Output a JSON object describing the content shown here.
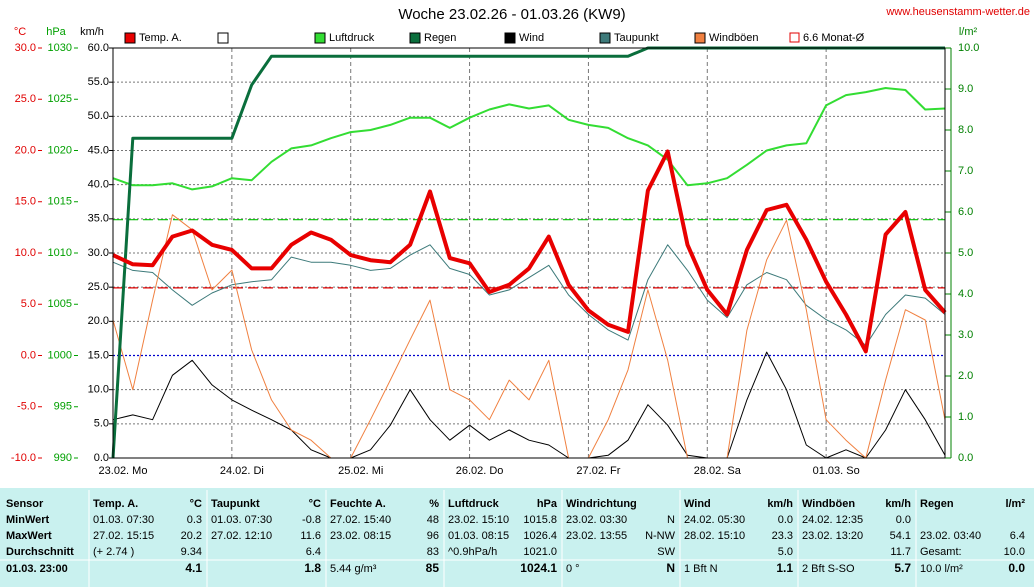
{
  "chart_data": {
    "type": "line",
    "title": "Woche 23.02.26 - 01.03.26 (KW9)",
    "source": "www.heusenstamm-wetter.de",
    "x": [
      0,
      4,
      8,
      12,
      16,
      20,
      24,
      28,
      32,
      36,
      40,
      44,
      48,
      52,
      56,
      60,
      64,
      68,
      72,
      76,
      80,
      84,
      88,
      92,
      96,
      100,
      104,
      108,
      112,
      116,
      120,
      124,
      128,
      132,
      136,
      140,
      144,
      148,
      152,
      156,
      160,
      164,
      168
    ],
    "xlim": [
      0,
      168
    ],
    "xticks": [
      {
        "value": 0,
        "label": "23.02. Mo"
      },
      {
        "value": 24,
        "label": "24.02. Di"
      },
      {
        "value": 48,
        "label": "25.02. Mi"
      },
      {
        "value": 72,
        "label": "26.02. Do"
      },
      {
        "value": 96,
        "label": "27.02. Fr"
      },
      {
        "value": 120,
        "label": "28.02. Sa"
      },
      {
        "value": 144,
        "label": "01.03. So"
      }
    ],
    "axes": {
      "temp": {
        "label": "°C",
        "color": "#e00000",
        "lim": [
          -10,
          30
        ],
        "ticks": [
          {
            "value": -10,
            "label": "-10.0"
          },
          {
            "value": -5,
            "label": "-5.0"
          },
          {
            "value": 0,
            "label": "0.0"
          },
          {
            "value": 5,
            "label": "5.0"
          },
          {
            "value": 10,
            "label": "10.0"
          },
          {
            "value": 15,
            "label": "15.0"
          },
          {
            "value": 20,
            "label": "20.0"
          },
          {
            "value": 25,
            "label": "25.0"
          },
          {
            "value": 30,
            "label": "30.0"
          }
        ]
      },
      "hpa": {
        "label": "hPa",
        "color": "#00a000",
        "lim": [
          990,
          1030
        ],
        "ticks": [
          990,
          995,
          1000,
          1005,
          1010,
          1015,
          1020,
          1025,
          1030
        ]
      },
      "kmh": {
        "label": "km/h",
        "color": "#000000",
        "lim": [
          0,
          60
        ],
        "grid": true,
        "ticks": [
          {
            "value": 0,
            "label": "0.0"
          },
          {
            "value": 5,
            "label": "5.0"
          },
          {
            "value": 10,
            "label": "10.0"
          },
          {
            "value": 15,
            "label": "15.0"
          },
          {
            "value": 20,
            "label": "20.0"
          },
          {
            "value": 25,
            "label": "25.0"
          },
          {
            "value": 30,
            "label": "30.0"
          },
          {
            "value": 35,
            "label": "35.0"
          },
          {
            "value": 40,
            "label": "40.0"
          },
          {
            "value": 45,
            "label": "45.0"
          },
          {
            "value": 50,
            "label": "50.0"
          },
          {
            "value": 55,
            "label": "55.0"
          },
          {
            "value": 60,
            "label": "60.0"
          }
        ]
      },
      "rain": {
        "label": "l/m²",
        "color": "#008000",
        "lim": [
          0,
          10
        ],
        "ticks": [
          {
            "value": 0,
            "label": "0.0"
          },
          {
            "value": 1,
            "label": "1.0"
          },
          {
            "value": 2,
            "label": "2.0"
          },
          {
            "value": 3,
            "label": "3.0"
          },
          {
            "value": 4,
            "label": "4.0"
          },
          {
            "value": 5,
            "label": "5.0"
          },
          {
            "value": 6,
            "label": "6.0"
          },
          {
            "value": 7,
            "label": "7.0"
          },
          {
            "value": 8,
            "label": "8.0"
          },
          {
            "value": 9,
            "label": "9.0"
          },
          {
            "value": 10,
            "label": "10.0"
          }
        ]
      }
    },
    "series": [
      {
        "name": "Temp. A.",
        "axis": "temp",
        "color": "#e80000",
        "width": 4,
        "values": [
          9.8,
          8.9,
          8.8,
          11.6,
          12.2,
          10.8,
          10.3,
          8.5,
          8.5,
          10.8,
          12.0,
          11.3,
          9.8,
          9.3,
          9.1,
          10.8,
          16.0,
          9.5,
          9.0,
          6.2,
          6.9,
          8.5,
          11.6,
          6.9,
          4.4,
          3.0,
          2.3,
          16.1,
          19.9,
          10.8,
          6.4,
          4.0,
          10.3,
          14.2,
          14.7,
          11.3,
          7.2,
          4.0,
          0.4,
          11.8,
          14.0,
          6.4,
          4.2
        ]
      },
      {
        "name": "Luftdruck",
        "axis": "hpa",
        "color": "#33dd33",
        "width": 2,
        "values": [
          1017.3,
          1016.6,
          1016.6,
          1016.8,
          1016.2,
          1016.5,
          1017.3,
          1017.1,
          1018.9,
          1020.2,
          1020.5,
          1021.2,
          1021.8,
          1022.0,
          1022.5,
          1023.2,
          1023.2,
          1022.2,
          1023.2,
          1024.0,
          1024.5,
          1024.1,
          1024.4,
          1023.0,
          1022.5,
          1022.2,
          1021.2,
          1020.5,
          1019.1,
          1016.6,
          1016.8,
          1017.3,
          1018.6,
          1020.0,
          1020.5,
          1020.7,
          1024.4,
          1025.4,
          1025.7,
          1026.1,
          1025.9,
          1024.0,
          1024.1
        ]
      },
      {
        "name": "Regen",
        "axis": "rain",
        "color": "#0a6e3c",
        "width": 3,
        "values": [
          0,
          7.8,
          7.8,
          7.8,
          7.8,
          7.8,
          7.8,
          9.1,
          9.8,
          9.8,
          9.8,
          9.8,
          9.8,
          9.8,
          9.8,
          9.8,
          9.8,
          9.8,
          9.8,
          9.8,
          9.8,
          9.8,
          9.8,
          9.8,
          9.8,
          9.8,
          9.8,
          10.0,
          10.0,
          10.0,
          10.0,
          10.0,
          10.0,
          10.0,
          10.0,
          10.0,
          10.0,
          10.0,
          10.0,
          10.0,
          10.0,
          10.0,
          10.0
        ]
      },
      {
        "name": "Wind",
        "axis": "kmh",
        "color": "#000000",
        "width": 1,
        "values": [
          5.6,
          6.3,
          5.6,
          12.1,
          14.3,
          10.7,
          8.5,
          7.0,
          5.6,
          4.1,
          1.2,
          0,
          0,
          1.2,
          4.8,
          10.0,
          5.6,
          2.6,
          4.8,
          2.6,
          4.1,
          2.6,
          1.9,
          0,
          0,
          0.4,
          2.6,
          7.8,
          4.8,
          0.4,
          0,
          0,
          8.5,
          15.5,
          10.0,
          1.9,
          0,
          1.2,
          0,
          4.1,
          10.0,
          5.6,
          0.4
        ]
      },
      {
        "name": "Taupunkt",
        "axis": "temp",
        "color": "#3d7a7a",
        "width": 1,
        "values": [
          9.1,
          8.3,
          8.1,
          6.4,
          4.9,
          6.1,
          6.9,
          7.2,
          7.4,
          9.6,
          9.1,
          9.1,
          8.8,
          8.3,
          8.5,
          9.8,
          10.8,
          8.5,
          7.9,
          5.9,
          6.4,
          7.6,
          8.8,
          5.9,
          4.0,
          2.5,
          1.5,
          7.4,
          10.8,
          8.3,
          5.4,
          3.7,
          6.9,
          8.1,
          7.4,
          4.9,
          3.5,
          2.5,
          1.0,
          4.0,
          5.9,
          5.6,
          4.0
        ]
      },
      {
        "name": "Windböen",
        "axis": "kmh",
        "color": "#f08040",
        "width": 1,
        "values": [
          20.2,
          10.0,
          23.1,
          35.6,
          33.4,
          24.6,
          27.5,
          15.8,
          8.5,
          4.1,
          2.6,
          0,
          0,
          5.6,
          11.4,
          17.3,
          23.1,
          10.0,
          8.5,
          5.6,
          11.4,
          8.5,
          14.3,
          0,
          0,
          5.6,
          12.9,
          24.6,
          14.3,
          0,
          0,
          0,
          18.7,
          29.0,
          34.8,
          21.7,
          5.6,
          2.6,
          0,
          11.4,
          21.7,
          20.2,
          5.6
        ]
      }
    ],
    "reference_lines": [
      {
        "name": "6.6 Monat-Ø",
        "axis": "temp",
        "value": 6.6,
        "color": "#e00000",
        "dash": "dashed"
      },
      {
        "axis": "hpa",
        "value": 1013.25,
        "color": "#00c000",
        "dash": "dashed"
      },
      {
        "axis": "temp",
        "value": 0,
        "color": "#0000cc",
        "dash": "dotted"
      }
    ]
  },
  "table": {
    "columns": [
      {
        "header": "Sensor",
        "rows": [
          "MinWert",
          "MaxWert",
          "Durchschnitt",
          "01.03. 23:00"
        ]
      },
      {
        "header": "Temp. A.",
        "unit": "°C",
        "rows": [
          {
            "text": "01.03. 07:30",
            "value": "0.3"
          },
          {
            "text": "27.02. 15:15",
            "value": "20.2"
          },
          {
            "text": "(+ 2.74 )",
            "value": "9.34"
          },
          {
            "value": "4.1"
          }
        ]
      },
      {
        "header": "Taupunkt",
        "unit": "°C",
        "rows": [
          {
            "text": "01.03. 07:30",
            "value": "-0.8"
          },
          {
            "text": "27.02. 12:10",
            "value": "11.6"
          },
          {
            "value": "6.4"
          },
          {
            "value": "1.8"
          }
        ]
      },
      {
        "header": "Feuchte A.",
        "unit": "%",
        "rows": [
          {
            "text": "27.02. 15:40",
            "value": "48"
          },
          {
            "text": "23.02. 08:15",
            "value": "96"
          },
          {
            "value": "83"
          },
          {
            "text": "5.44 g/m³",
            "value": "85"
          }
        ]
      },
      {
        "header": "Luftdruck",
        "unit": "hPa",
        "rows": [
          {
            "text": "23.02. 15:10",
            "value": "1015.8"
          },
          {
            "text": "01.03. 08:15",
            "value": "1026.4"
          },
          {
            "text": "^0.9hPa/h",
            "value": "1021.0"
          },
          {
            "value": "1024.1"
          }
        ]
      },
      {
        "header": "Windrichtung",
        "rows": [
          {
            "text": "23.02. 03:30",
            "value": "N"
          },
          {
            "text": "23.02. 13:55",
            "value": "N-NW"
          },
          {
            "value": "SW"
          },
          {
            "text": "0 °",
            "value": "N"
          }
        ]
      },
      {
        "header": "Wind",
        "unit": "km/h",
        "rows": [
          {
            "text": "24.02. 05:30",
            "value": "0.0"
          },
          {
            "text": "28.02. 15:10",
            "value": "23.3"
          },
          {
            "value": "5.0"
          },
          {
            "text": "1 Bft N",
            "value": "1.1"
          }
        ]
      },
      {
        "header": "Windböen",
        "unit": "km/h",
        "rows": [
          {
            "text": "24.02. 12:35",
            "value": "0.0"
          },
          {
            "text": "23.02. 13:20",
            "value": "54.1"
          },
          {
            "value": "11.7"
          },
          {
            "text": "2 Bft S-SO",
            "value": "5.7"
          }
        ]
      },
      {
        "header": "Regen",
        "unit": "l/m²",
        "rows": [
          null,
          {
            "text": "23.02. 03:40",
            "value": "6.4"
          },
          {
            "text": "Gesamt:",
            "value": "10.0"
          },
          {
            "text": "10.0 l/m²",
            "value": "0.0"
          }
        ]
      }
    ]
  }
}
